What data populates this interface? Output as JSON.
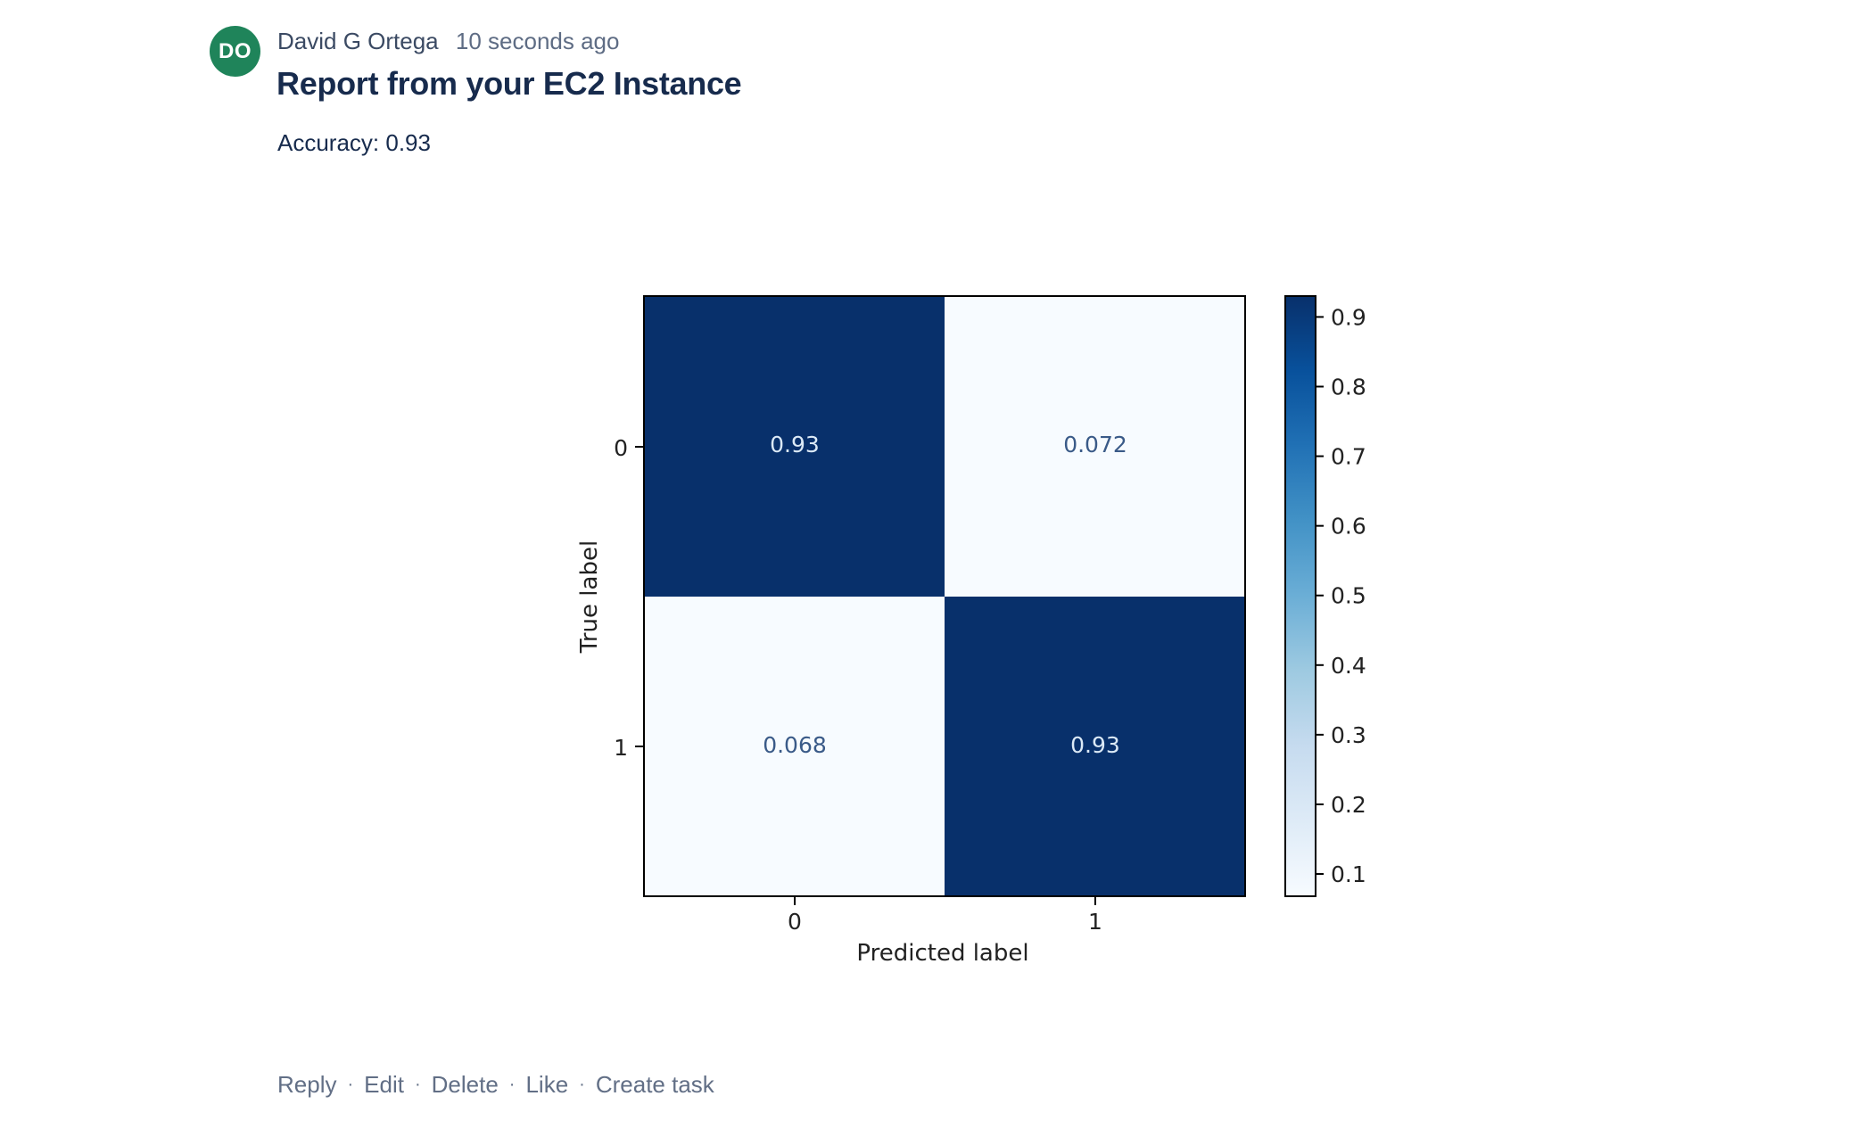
{
  "comment": {
    "avatar": {
      "initials": "DO",
      "color": "#1f845a"
    },
    "author": "David G Ortega",
    "timestamp": "10 seconds ago",
    "title": "Report from your EC2 Instance",
    "body": "Accuracy: 0.93",
    "actions": [
      {
        "label": "Reply"
      },
      {
        "label": "Edit"
      },
      {
        "label": "Delete"
      },
      {
        "label": "Like"
      },
      {
        "label": "Create task"
      }
    ],
    "action_separator": "·"
  },
  "colors": {
    "dark_cell": "#08306b",
    "light_cell": "#f7fbff",
    "dark_cell_text": "#dbe9f6",
    "light_cell_text": "#3a5a88"
  },
  "chart_data": {
    "type": "heatmap",
    "title": "",
    "xlabel": "Predicted label",
    "ylabel": "True label",
    "x_ticks": [
      "0",
      "1"
    ],
    "y_ticks": [
      "0",
      "1"
    ],
    "matrix": [
      [
        0.93,
        0.072
      ],
      [
        0.068,
        0.93
      ]
    ],
    "cell_labels": [
      [
        "0.93",
        "0.072"
      ],
      [
        "0.068",
        "0.93"
      ]
    ],
    "colormap": "Blues",
    "colorbar": {
      "range": [
        0.068,
        0.93
      ],
      "ticks": [
        "0.1",
        "0.2",
        "0.3",
        "0.4",
        "0.5",
        "0.6",
        "0.7",
        "0.8",
        "0.9"
      ]
    },
    "grid": false
  }
}
